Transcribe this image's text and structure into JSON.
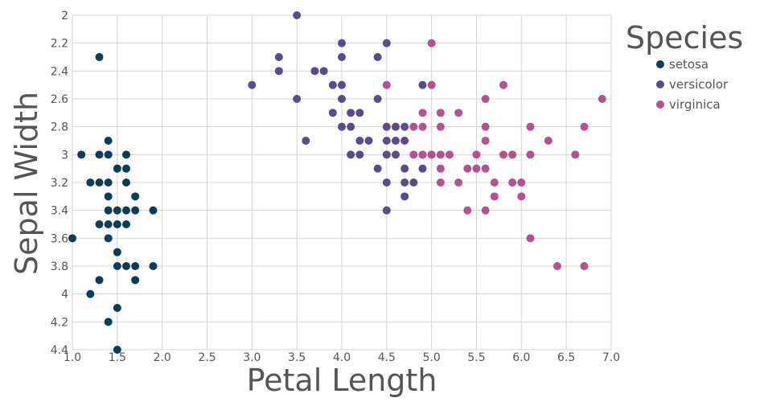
{
  "chart_data": {
    "type": "scatter",
    "xlabel": "Petal Length",
    "ylabel": "Sepal Width",
    "xlim": [
      1.0,
      7.0
    ],
    "ylim": [
      2.0,
      4.4
    ],
    "y_inverted": true,
    "x_ticks": [
      "1.0",
      "1.5",
      "2.0",
      "2.5",
      "3.0",
      "3.5",
      "4.0",
      "4.5",
      "5.0",
      "5.5",
      "6.0",
      "6.5",
      "7.0"
    ],
    "y_ticks": [
      "2",
      "2.2",
      "2.4",
      "2.6",
      "2.8",
      "3",
      "3.2",
      "3.4",
      "3.6",
      "3.8",
      "4",
      "4.2",
      "4.4"
    ],
    "grid": true,
    "legend": {
      "title": "Species",
      "placement": "right"
    },
    "series": [
      {
        "name": "setosa",
        "color": "#0b3d56",
        "points": [
          [
            1.3,
            2.3
          ],
          [
            1.1,
            3.0
          ],
          [
            1.3,
            3.0
          ],
          [
            1.4,
            3.0
          ],
          [
            1.6,
            3.0
          ],
          [
            1.4,
            2.9
          ],
          [
            1.5,
            3.1
          ],
          [
            1.6,
            3.1
          ],
          [
            1.2,
            3.2
          ],
          [
            1.3,
            3.2
          ],
          [
            1.4,
            3.2
          ],
          [
            1.6,
            3.2
          ],
          [
            1.4,
            3.3
          ],
          [
            1.7,
            3.3
          ],
          [
            1.4,
            3.4
          ],
          [
            1.5,
            3.4
          ],
          [
            1.6,
            3.4
          ],
          [
            1.7,
            3.4
          ],
          [
            1.9,
            3.4
          ],
          [
            1.3,
            3.5
          ],
          [
            1.4,
            3.5
          ],
          [
            1.5,
            3.5
          ],
          [
            1.6,
            3.5
          ],
          [
            1.0,
            3.6
          ],
          [
            1.4,
            3.6
          ],
          [
            1.5,
            3.7
          ],
          [
            1.5,
            3.8
          ],
          [
            1.6,
            3.8
          ],
          [
            1.7,
            3.8
          ],
          [
            1.9,
            3.8
          ],
          [
            1.3,
            3.9
          ],
          [
            1.7,
            3.9
          ],
          [
            1.2,
            4.0
          ],
          [
            1.5,
            4.1
          ],
          [
            1.4,
            4.2
          ],
          [
            1.5,
            4.4
          ]
        ]
      },
      {
        "name": "versicolor",
        "color": "#5b4b8a",
        "points": [
          [
            3.5,
            2.0
          ],
          [
            4.0,
            2.2
          ],
          [
            4.5,
            2.2
          ],
          [
            3.3,
            2.3
          ],
          [
            4.0,
            2.3
          ],
          [
            4.4,
            2.3
          ],
          [
            3.3,
            2.4
          ],
          [
            3.7,
            2.4
          ],
          [
            3.8,
            2.4
          ],
          [
            3.0,
            2.5
          ],
          [
            3.9,
            2.5
          ],
          [
            4.0,
            2.5
          ],
          [
            4.9,
            2.5
          ],
          [
            3.5,
            2.6
          ],
          [
            4.0,
            2.6
          ],
          [
            4.4,
            2.6
          ],
          [
            3.9,
            2.7
          ],
          [
            4.1,
            2.7
          ],
          [
            4.2,
            2.7
          ],
          [
            4.0,
            2.8
          ],
          [
            4.1,
            2.8
          ],
          [
            4.5,
            2.8
          ],
          [
            4.6,
            2.8
          ],
          [
            4.7,
            2.8
          ],
          [
            3.6,
            2.9
          ],
          [
            4.2,
            2.9
          ],
          [
            4.3,
            2.9
          ],
          [
            4.5,
            2.9
          ],
          [
            4.6,
            2.9
          ],
          [
            4.7,
            2.9
          ],
          [
            4.1,
            3.0
          ],
          [
            4.2,
            3.0
          ],
          [
            4.5,
            3.0
          ],
          [
            4.6,
            3.0
          ],
          [
            4.9,
            3.0
          ],
          [
            5.0,
            3.0
          ],
          [
            4.4,
            3.1
          ],
          [
            4.7,
            3.1
          ],
          [
            4.9,
            3.1
          ],
          [
            4.5,
            3.2
          ],
          [
            4.7,
            3.2
          ],
          [
            4.8,
            3.2
          ],
          [
            4.7,
            3.3
          ],
          [
            4.5,
            3.4
          ]
        ]
      },
      {
        "name": "virginica",
        "color": "#b84f91",
        "points": [
          [
            5.0,
            2.2
          ],
          [
            4.5,
            2.5
          ],
          [
            5.0,
            2.5
          ],
          [
            5.8,
            2.5
          ],
          [
            5.6,
            2.6
          ],
          [
            6.9,
            2.6
          ],
          [
            4.9,
            2.7
          ],
          [
            5.1,
            2.7
          ],
          [
            5.3,
            2.7
          ],
          [
            4.8,
            2.8
          ],
          [
            4.9,
            2.8
          ],
          [
            5.1,
            2.8
          ],
          [
            5.6,
            2.8
          ],
          [
            6.1,
            2.8
          ],
          [
            6.7,
            2.8
          ],
          [
            5.6,
            2.9
          ],
          [
            6.3,
            2.9
          ],
          [
            4.8,
            3.0
          ],
          [
            4.9,
            3.0
          ],
          [
            5.0,
            3.0
          ],
          [
            5.1,
            3.0
          ],
          [
            5.2,
            3.0
          ],
          [
            5.5,
            3.0
          ],
          [
            5.8,
            3.0
          ],
          [
            5.9,
            3.0
          ],
          [
            6.1,
            3.0
          ],
          [
            6.6,
            3.0
          ],
          [
            5.1,
            3.1
          ],
          [
            5.4,
            3.1
          ],
          [
            5.5,
            3.1
          ],
          [
            5.6,
            3.1
          ],
          [
            5.1,
            3.2
          ],
          [
            5.3,
            3.2
          ],
          [
            5.7,
            3.2
          ],
          [
            5.9,
            3.2
          ],
          [
            6.0,
            3.2
          ],
          [
            5.7,
            3.3
          ],
          [
            6.0,
            3.3
          ],
          [
            5.4,
            3.4
          ],
          [
            5.6,
            3.4
          ],
          [
            6.1,
            3.6
          ],
          [
            6.4,
            3.8
          ],
          [
            6.7,
            3.8
          ]
        ]
      }
    ]
  }
}
